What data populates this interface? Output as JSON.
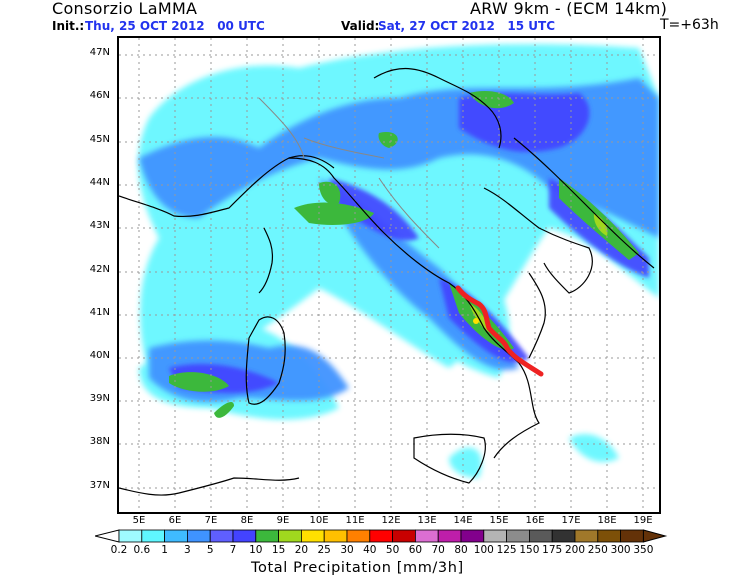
{
  "header": {
    "organization": "Consorzio LaMMA",
    "model": "ARW 9km - (ECM 14km)",
    "init_label": "Init.:",
    "init_value": "Thu, 25 OCT 2012   00 UTC",
    "valid_label": "Valid:",
    "valid_value": "Sat, 27 OCT 2012   15 UTC",
    "forecast_step": "T=+63h"
  },
  "map": {
    "region": "Italy / Central Mediterranean",
    "lat_ticks": [
      "47N",
      "46N",
      "45N",
      "44N",
      "43N",
      "42N",
      "41N",
      "40N",
      "39N",
      "38N",
      "37N"
    ],
    "lon_ticks": [
      "5E",
      "6E",
      "7E",
      "8E",
      "9E",
      "10E",
      "11E",
      "12E",
      "13E",
      "14E",
      "15E",
      "16E",
      "17E",
      "18E",
      "19E"
    ],
    "annotation": {
      "type": "red-track-line",
      "color": "#ee2222",
      "description": "Red line drawn along Campania-Basilicata"
    }
  },
  "colorbar": {
    "title": "Total Precipitation [mm/3h]",
    "labels": [
      "0.2",
      "0.6",
      "1",
      "3",
      "5",
      "7",
      "10",
      "15",
      "20",
      "25",
      "30",
      "40",
      "50",
      "60",
      "70",
      "80",
      "100",
      "125",
      "150",
      "175",
      "200",
      "250",
      "300",
      "350"
    ],
    "colors": [
      "#9ffbff",
      "#5ff7ff",
      "#3fbbff",
      "#3f93ff",
      "#5f5fff",
      "#4343ff",
      "#3cb83c",
      "#a0d81e",
      "#ffe000",
      "#ffc000",
      "#ff8000",
      "#ff0000",
      "#c80000",
      "#dc6ed2",
      "#be1eaa",
      "#82008c",
      "#b4b4b4",
      "#8c8c8c",
      "#5a5a5a",
      "#323232",
      "#a0782a",
      "#7d5008",
      "#643208"
    ]
  }
}
